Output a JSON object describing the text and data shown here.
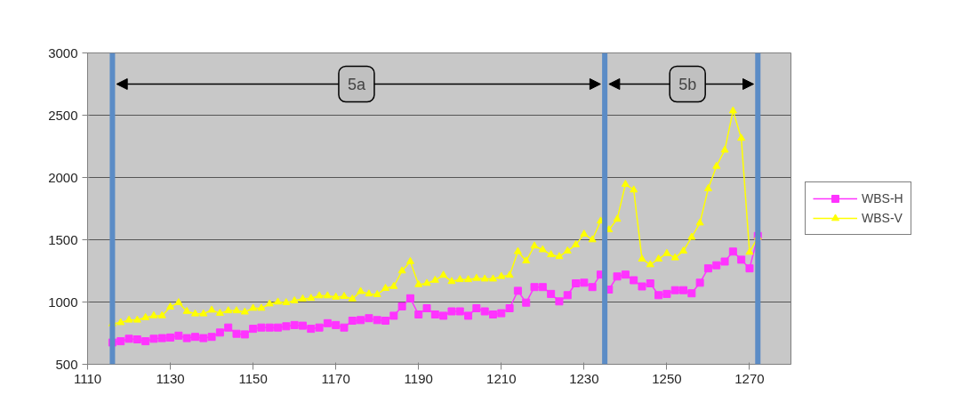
{
  "chart_data": {
    "type": "line",
    "x": [
      1116,
      1118,
      1120,
      1122,
      1124,
      1126,
      1128,
      1130,
      1132,
      1134,
      1136,
      1138,
      1140,
      1142,
      1144,
      1146,
      1148,
      1150,
      1152,
      1154,
      1156,
      1158,
      1160,
      1162,
      1164,
      1166,
      1168,
      1170,
      1172,
      1174,
      1176,
      1178,
      1180,
      1182,
      1184,
      1186,
      1188,
      1190,
      1192,
      1194,
      1196,
      1198,
      1200,
      1202,
      1204,
      1206,
      1208,
      1210,
      1212,
      1214,
      1216,
      1218,
      1220,
      1222,
      1224,
      1226,
      1228,
      1230,
      1232,
      1234,
      1236,
      1238,
      1240,
      1242,
      1244,
      1246,
      1248,
      1250,
      1252,
      1254,
      1256,
      1258,
      1260,
      1262,
      1264,
      1266,
      1268,
      1270,
      1272
    ],
    "series": [
      {
        "name": "WBS-H",
        "color": "#ff33ff",
        "marker": "square",
        "values": [
          675,
          685,
          705,
          700,
          685,
          705,
          710,
          715,
          730,
          710,
          720,
          710,
          720,
          755,
          795,
          745,
          740,
          785,
          795,
          795,
          795,
          805,
          815,
          810,
          785,
          795,
          830,
          815,
          795,
          850,
          855,
          870,
          855,
          850,
          890,
          965,
          1030,
          900,
          950,
          900,
          890,
          925,
          925,
          890,
          950,
          925,
          900,
          910,
          950,
          1090,
          995,
          1120,
          1120,
          1065,
          1005,
          1055,
          1150,
          1155,
          1120,
          1220,
          1100,
          1205,
          1220,
          1175,
          1125,
          1150,
          1055,
          1065,
          1095,
          1095,
          1070,
          1155,
          1270,
          1295,
          1325,
          1405,
          1340,
          1270,
          1530
        ]
      },
      {
        "name": "WBS-V",
        "color": "#ffff00",
        "marker": "triangle",
        "values": [
          825,
          835,
          855,
          855,
          875,
          890,
          890,
          960,
          995,
          925,
          905,
          905,
          935,
          910,
          930,
          930,
          920,
          950,
          950,
          985,
          1000,
          995,
          1010,
          1025,
          1030,
          1050,
          1050,
          1040,
          1045,
          1025,
          1085,
          1065,
          1060,
          1110,
          1125,
          1250,
          1325,
          1140,
          1150,
          1175,
          1215,
          1165,
          1180,
          1180,
          1190,
          1185,
          1185,
          1205,
          1215,
          1405,
          1330,
          1450,
          1420,
          1380,
          1365,
          1410,
          1460,
          1545,
          1500,
          1650,
          1580,
          1665,
          1945,
          1900,
          1345,
          1300,
          1345,
          1390,
          1355,
          1410,
          1520,
          1635,
          1910,
          2090,
          2220,
          2535,
          2315,
          1400,
          1520
        ]
      }
    ],
    "xlim": [
      1110,
      1280
    ],
    "xticks": [
      1110,
      1130,
      1150,
      1170,
      1190,
      1210,
      1230,
      1250,
      1270
    ],
    "ylim": [
      500,
      3000
    ],
    "yticks": [
      500,
      1000,
      1500,
      2000,
      2500,
      3000
    ],
    "grid": "y",
    "legend": "right",
    "line_style": "solid",
    "ref_lines": [
      {
        "axis": "x",
        "value": 1116,
        "color": "#5b8cc6"
      },
      {
        "axis": "x",
        "value": 1235,
        "color": "#5b8cc6"
      },
      {
        "axis": "x",
        "value": 1272,
        "color": "#5b8cc6"
      }
    ],
    "annotations": [
      {
        "text": "5a",
        "x": 1175,
        "y": 2750
      },
      {
        "text": "5b",
        "x": 1255,
        "y": 2750
      }
    ]
  }
}
